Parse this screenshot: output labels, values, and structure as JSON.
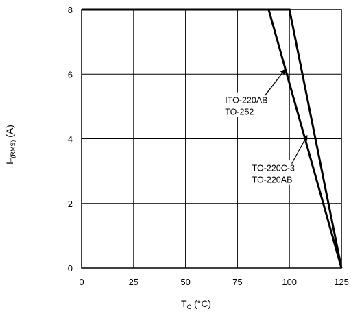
{
  "chart_data": {
    "type": "line",
    "ylabel_main": "I",
    "ylabel_sub": "T(RMS)",
    "ylabel_unit": " (A)",
    "xlabel_main": "T",
    "xlabel_sub": "C",
    "xlabel_unit": " (°C)",
    "xlim": [
      0,
      125
    ],
    "ylim": [
      0,
      8
    ],
    "xticks": [
      "0",
      "25",
      "50",
      "75",
      "100",
      "125"
    ],
    "xtick_values": [
      0,
      25,
      50,
      75,
      100,
      125
    ],
    "yticks": [
      "0",
      "2",
      "4",
      "6",
      "8"
    ],
    "ytick_values": [
      0,
      2,
      4,
      6,
      8
    ],
    "grid": true,
    "series": [
      {
        "name": "ITO-220AB TO-252",
        "x": [
          0,
          90,
          125
        ],
        "y": [
          8,
          8,
          0
        ]
      },
      {
        "name": "TO-220C-3 TO-220AB",
        "x": [
          0,
          100,
          125
        ],
        "y": [
          8,
          8,
          0
        ]
      }
    ],
    "annotations": [
      {
        "lines": [
          "ITO-220AB",
          "TO-252"
        ],
        "arrow_to": [
          98,
          6.15
        ],
        "text_at": [
          69,
          5.1
        ]
      },
      {
        "lines": [
          "TO-220C-3",
          "TO-220AB"
        ],
        "arrow_to": [
          108.5,
          4.1
        ],
        "text_at": [
          82,
          3.0
        ]
      }
    ]
  }
}
